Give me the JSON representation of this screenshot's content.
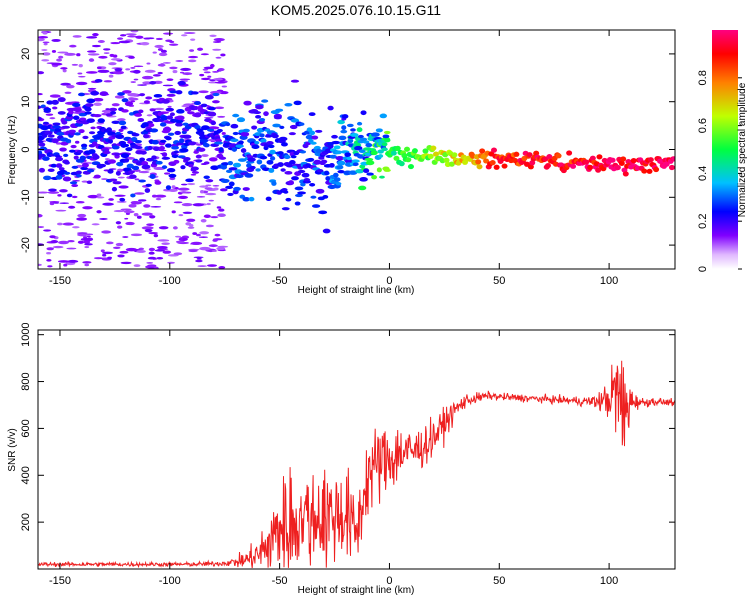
{
  "title": "KOM5.2025.076.10.15.G11",
  "chart_data": [
    {
      "type": "heatmap",
      "xlabel": "Height of straight line (km)",
      "ylabel": "Frequency (Hz)",
      "xlim": [
        -160,
        130
      ],
      "ylim": [
        -25,
        25
      ],
      "xticks": [
        -150,
        -100,
        -50,
        0,
        50,
        100
      ],
      "yticks": [
        -20,
        -10,
        0,
        10,
        20
      ],
      "colorbar": {
        "label": "Normalized spectral amplitude",
        "range": [
          0,
          1
        ],
        "ticks": [
          0.0,
          0.2,
          0.4,
          0.6,
          0.8
        ]
      },
      "ridge": {
        "x": [
          -160,
          -120,
          -80,
          -70,
          -60,
          -50,
          -40,
          -30,
          -20,
          -10,
          0,
          5,
          10,
          20,
          30,
          40,
          50,
          60,
          70,
          80,
          90,
          100,
          110,
          120,
          130
        ],
        "frequency": [
          2,
          2,
          4,
          -2,
          3,
          -1,
          0,
          -3,
          -1,
          0,
          0,
          -2,
          -1,
          -1,
          -2,
          -2,
          -2,
          -2,
          -2,
          -3,
          -3,
          -3,
          -3,
          -3,
          -3
        ],
        "amplitude": [
          0.25,
          0.25,
          0.25,
          0.3,
          0.3,
          0.3,
          0.3,
          0.3,
          0.35,
          0.45,
          0.5,
          0.5,
          0.55,
          0.6,
          0.7,
          0.8,
          0.9,
          0.9,
          0.9,
          0.9,
          0.95,
          0.95,
          0.95,
          1.0,
          1.0
        ]
      },
      "colors": {
        "colormap": [
          "#e0b8ff",
          "#8000ff",
          "#0000ff",
          "#00c0ff",
          "#00ff40",
          "#c0ff00",
          "#ff8000",
          "#ff0000",
          "#ff0080"
        ]
      }
    },
    {
      "type": "line",
      "xlabel": "Height of straight line (km)",
      "ylabel": "SNR (v/v)",
      "xlim": [
        -160,
        130
      ],
      "ylim": [
        0,
        1020
      ],
      "xticks": [
        -150,
        -100,
        -50,
        0,
        50,
        100
      ],
      "yticks": [
        200,
        400,
        600,
        800,
        1000
      ],
      "series": [
        {
          "color": "#ee2020",
          "x": [
            -160,
            -140,
            -120,
            -100,
            -90,
            -80,
            -75,
            -70,
            -65,
            -60,
            -55,
            -50,
            -45,
            -40,
            -35,
            -30,
            -25,
            -20,
            -18,
            -15,
            -12,
            -10,
            -5,
            0,
            5,
            10,
            15,
            20,
            25,
            30,
            35,
            40,
            45,
            50,
            60,
            70,
            80,
            90,
            95,
            100,
            103,
            105,
            107,
            108,
            110,
            115,
            120,
            130
          ],
          "y": [
            20,
            20,
            20,
            20,
            20,
            22,
            25,
            30,
            40,
            60,
            100,
            180,
            200,
            220,
            220,
            230,
            230,
            240,
            200,
            150,
            300,
            400,
            450,
            470,
            500,
            500,
            520,
            560,
            620,
            680,
            720,
            730,
            740,
            735,
            730,
            725,
            720,
            715,
            715,
            725,
            760,
            720,
            620,
            700,
            720,
            710,
            715,
            710
          ],
          "spread": [
            8,
            8,
            8,
            8,
            8,
            10,
            10,
            20,
            40,
            60,
            120,
            170,
            200,
            200,
            200,
            200,
            190,
            190,
            170,
            120,
            180,
            160,
            150,
            140,
            120,
            90,
            80,
            70,
            60,
            40,
            25,
            20,
            15,
            15,
            15,
            15,
            15,
            20,
            30,
            80,
            160,
            240,
            300,
            200,
            40,
            20,
            15,
            12
          ]
        }
      ]
    }
  ]
}
